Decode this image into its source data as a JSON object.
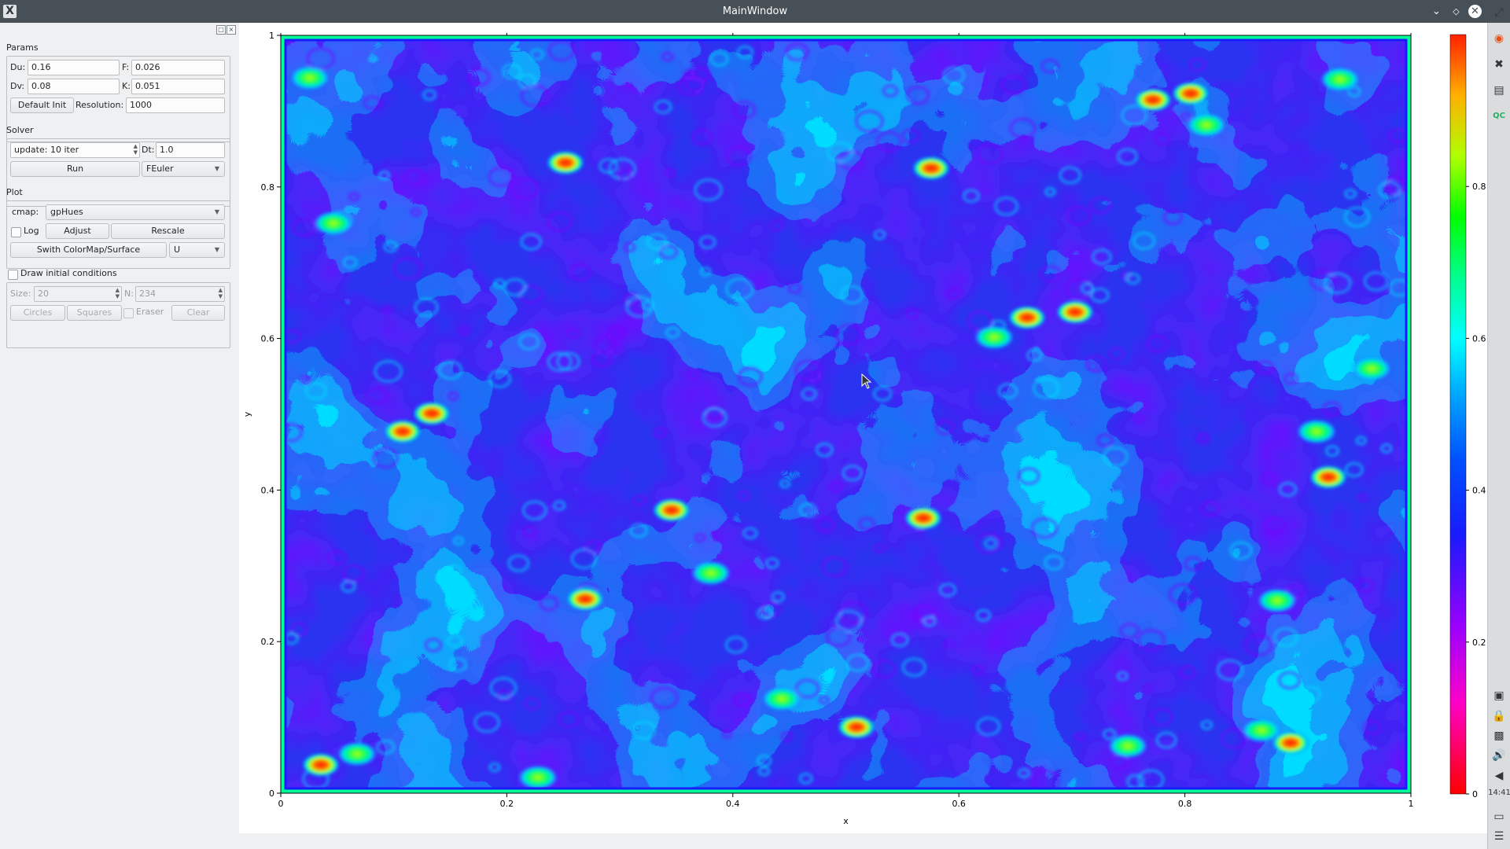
{
  "window": {
    "title": "MainWindow",
    "app_icon": "X",
    "buttons": [
      "chevron-down-icon",
      "restore-icon",
      "close-icon"
    ]
  },
  "dock": {
    "params_title": "Params",
    "du_label": "Du:",
    "du_value": "0.16",
    "f_label": "F:",
    "f_value": "0.026",
    "dv_label": "Dv:",
    "dv_value": "0.08",
    "k_label": "K:",
    "k_value": "0.051",
    "default_init_label": "Default Init",
    "resolution_label": "Resolution:",
    "resolution_value": "1000",
    "solver_title": "Solver",
    "update_value": "update: 10 iter",
    "dt_label": "Dt:",
    "dt_value": "1.0",
    "run_label": "Run",
    "method_value": "FEuler",
    "plot_title": "Plot",
    "cmap_label": "cmap:",
    "cmap_value": "gpHues",
    "log_label": "Log",
    "adjust_label": "Adjust",
    "rescale_label": "Rescale",
    "switch_label": "Swith ColorMap/Surface",
    "field_value": "U",
    "draw_init_label": "Draw initial conditions",
    "size_label": "Size:",
    "size_value": "20",
    "n_label": "N:",
    "n_value": "234",
    "circles_label": "Circles",
    "squares_label": "Squares",
    "eraser_label": "Eraser",
    "clear_label": "Clear"
  },
  "plot": {
    "x_label": "x",
    "y_label": "y",
    "x_ticks": [
      "0",
      "0.2",
      "0.4",
      "0.6",
      "0.8",
      "1"
    ],
    "y_ticks": [
      "0",
      "0.2",
      "0.4",
      "0.6",
      "0.8",
      "1"
    ],
    "colorbar_ticks": [
      "0",
      "0.2",
      "0.4",
      "0.6",
      "0.8"
    ],
    "colormap": "gpHues",
    "x_range": [
      0,
      1
    ],
    "y_range": [
      0,
      1
    ],
    "colorbar_range": [
      0,
      1
    ]
  },
  "system_panel": {
    "clock": "14:41"
  },
  "colors": {
    "titlebar": "#475057",
    "window_bg": "#eff0f1",
    "field_low": "#2d3cff",
    "field_mid": "#00d8ff",
    "field_high": "#ff2a00"
  }
}
